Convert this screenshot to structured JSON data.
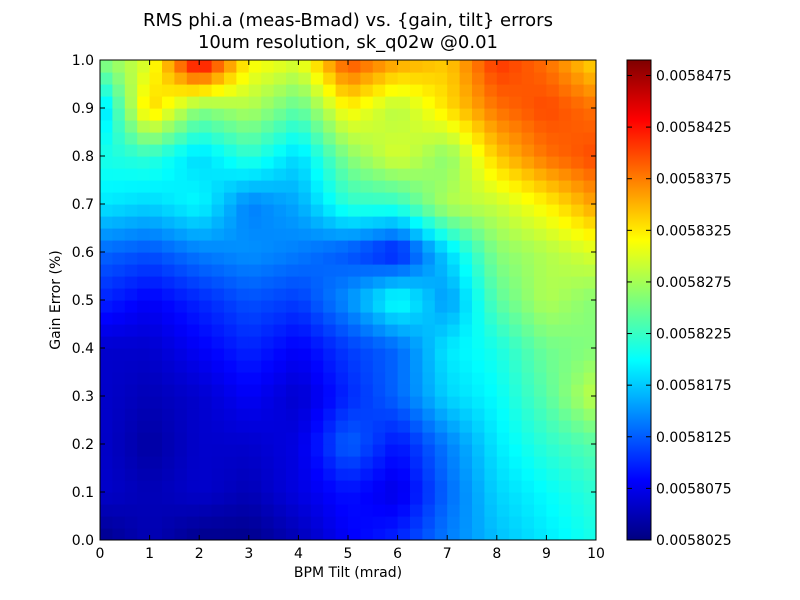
{
  "chart_data": {
    "type": "heatmap",
    "title": [
      "RMS phi.a (meas-Bmad) vs. {gain, tilt} errors",
      "10um resolution, sk_q02w @0.01"
    ],
    "xlabel": "BPM Tilt (mrad)",
    "ylabel": "Gain Error (%)",
    "xlim": [
      0,
      10
    ],
    "ylim": [
      0,
      1.0
    ],
    "x_ticks": [
      "0",
      "1",
      "2",
      "3",
      "4",
      "5",
      "6",
      "7",
      "8",
      "9",
      "10"
    ],
    "y_ticks": [
      "0.0",
      "0.1",
      "0.2",
      "0.3",
      "0.4",
      "0.5",
      "0.6",
      "0.7",
      "0.8",
      "0.9",
      "1.0"
    ],
    "x": [
      0,
      1,
      2,
      3,
      4,
      5,
      6,
      7,
      8,
      9,
      10
    ],
    "y": [
      0,
      0.1,
      0.2,
      0.3,
      0.4,
      0.5,
      0.6,
      0.7,
      0.8,
      0.9,
      1.0
    ],
    "z": [
      [
        0.005803,
        0.005805,
        0.005803,
        0.005803,
        0.005805,
        0.005808,
        0.00581,
        0.005814,
        0.005817,
        0.005819,
        0.005821
      ],
      [
        0.005806,
        0.005805,
        0.005806,
        0.005805,
        0.005807,
        0.005809,
        0.005807,
        0.005813,
        0.005818,
        0.00582,
        0.005822
      ],
      [
        0.005806,
        0.005804,
        0.005806,
        0.005806,
        0.005807,
        0.005813,
        0.005809,
        0.005814,
        0.005819,
        0.005822,
        0.005824
      ],
      [
        0.005806,
        0.005805,
        0.005806,
        0.005808,
        0.005806,
        0.00581,
        0.005813,
        0.005818,
        0.00582,
        0.005824,
        0.005829
      ],
      [
        0.005806,
        0.005806,
        0.005808,
        0.00581,
        0.005808,
        0.005811,
        0.005813,
        0.005819,
        0.005821,
        0.005825,
        0.005826
      ],
      [
        0.00581,
        0.005808,
        0.00581,
        0.005812,
        0.005811,
        0.005815,
        0.005821,
        0.005815,
        0.005824,
        0.005828,
        0.005826
      ],
      [
        0.005813,
        0.005812,
        0.005814,
        0.005815,
        0.005814,
        0.005812,
        0.005809,
        0.005818,
        0.005826,
        0.005828,
        0.00583
      ],
      [
        0.005819,
        0.005818,
        0.00582,
        0.005814,
        0.005816,
        0.005822,
        0.005822,
        0.005828,
        0.005829,
        0.005832,
        0.005836
      ],
      [
        0.005821,
        0.005822,
        0.005818,
        0.005822,
        0.005818,
        0.005826,
        0.00583,
        0.005826,
        0.005834,
        0.005838,
        0.00584
      ],
      [
        0.005817,
        0.005834,
        0.005826,
        0.005828,
        0.005824,
        0.005832,
        0.005828,
        0.005833,
        0.005838,
        0.00584,
        0.005838
      ],
      [
        0.005826,
        0.00583,
        0.005845,
        0.005832,
        0.00583,
        0.00584,
        0.005836,
        0.005834,
        0.005841,
        0.005838,
        0.005833
      ]
    ],
    "colorbar": {
      "min": 0.0058025,
      "max": 0.005849,
      "ticks": [
        0.0058025,
        0.0058075,
        0.0058125,
        0.0058175,
        0.0058225,
        0.0058275,
        0.0058325,
        0.0058375,
        0.0058425,
        0.0058475
      ],
      "tick_labels": [
        "0.0058025",
        "0.0058075",
        "0.0058125",
        "0.0058175",
        "0.0058225",
        "0.0058275",
        "0.0058325",
        "0.0058375",
        "0.0058425",
        "0.0058475"
      ],
      "colormap": "jet"
    },
    "grid": false
  }
}
